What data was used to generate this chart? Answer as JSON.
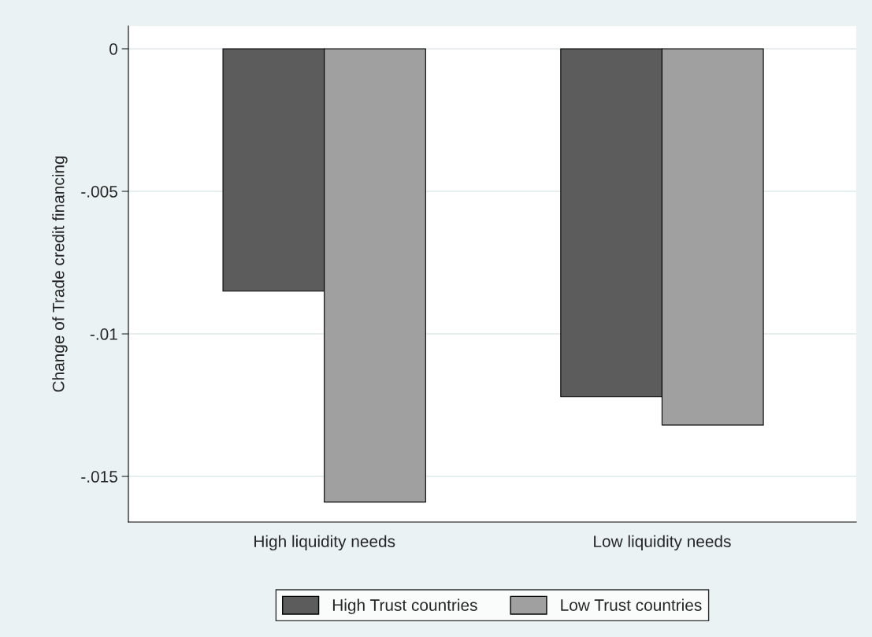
{
  "chart_data": {
    "type": "bar",
    "ylabel": "Change of Trade credit financing",
    "categories": [
      "High liquidity needs",
      "Low liquidity needs"
    ],
    "series": [
      {
        "name": "High Trust countries",
        "color": "#5c5c5c",
        "values": [
          -0.0085,
          -0.0122
        ]
      },
      {
        "name": "Low Trust countries",
        "color": "#a0a0a0",
        "values": [
          -0.0159,
          -0.0132
        ]
      }
    ],
    "ylim": [
      -0.0166,
      0.0008
    ],
    "yticks": [
      {
        "value": 0,
        "label": "0"
      },
      {
        "value": -0.005,
        "label": "-.005"
      },
      {
        "value": -0.01,
        "label": "-.01"
      },
      {
        "value": -0.015,
        "label": "-.015"
      }
    ],
    "grid": "y",
    "legend": "bottom"
  }
}
